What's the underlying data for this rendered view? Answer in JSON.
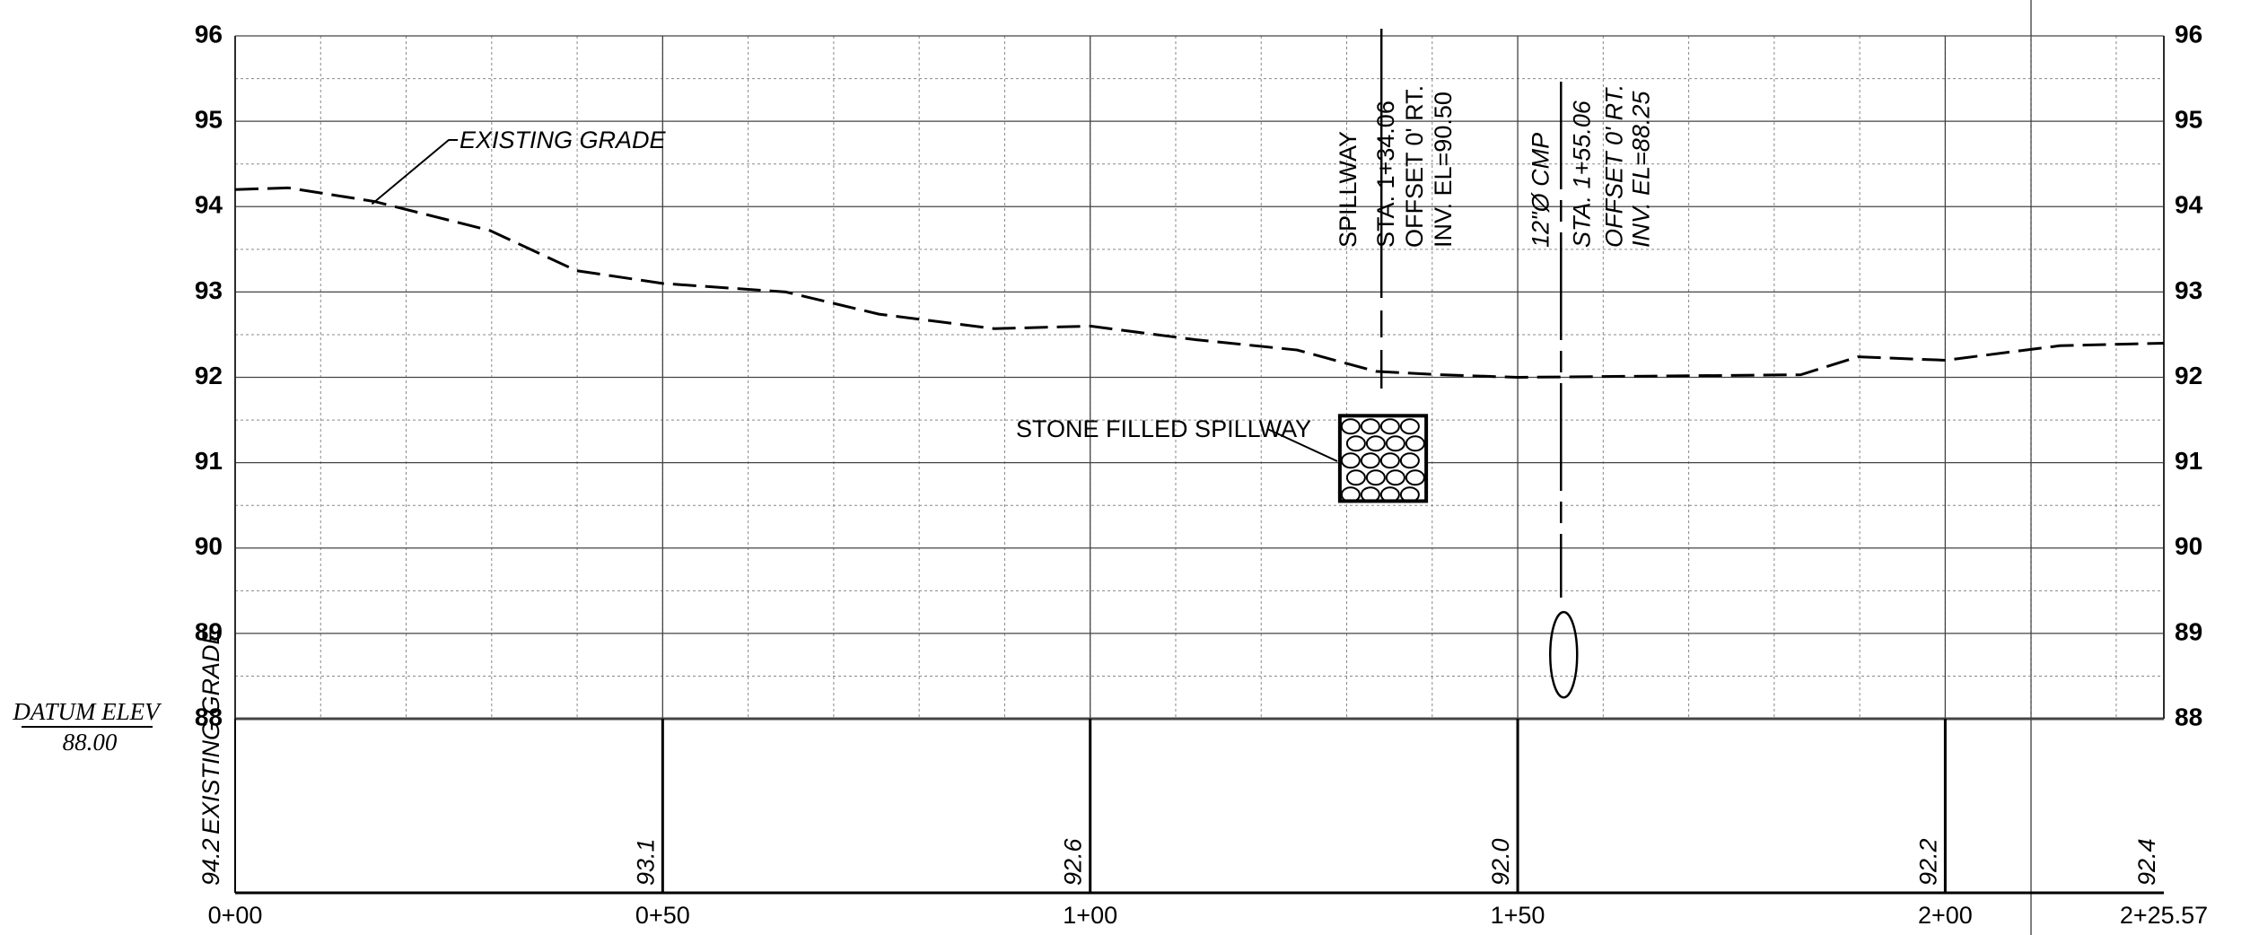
{
  "chart_data": {
    "type": "line",
    "x": [
      0,
      6.2,
      16.3,
      29.8,
      39.9,
      50,
      64.4,
      75.3,
      88.8,
      100,
      112.4,
      124.2,
      133.4,
      141,
      150,
      183.1,
      189.8,
      200,
      213.4,
      225.57
    ],
    "series": [
      {
        "name": "EXISTING GRADE",
        "color": "#000000",
        "values": [
          94.2,
          94.22,
          94.06,
          93.72,
          93.25,
          93.1,
          93.0,
          92.74,
          92.57,
          92.6,
          92.44,
          92.32,
          92.07,
          92.03,
          92.0,
          92.03,
          92.24,
          92.2,
          92.37,
          92.4
        ]
      }
    ],
    "xlim": [
      0,
      225.57
    ],
    "xticks": [
      {
        "value": 0,
        "label": "0+00"
      },
      {
        "value": 50,
        "label": "0+50"
      },
      {
        "value": 100,
        "label": "1+00"
      },
      {
        "value": 150,
        "label": "1+50"
      },
      {
        "value": 200,
        "label": "2+00"
      },
      {
        "value": 225.57,
        "label": "2+25.57"
      }
    ],
    "ylim": [
      88,
      96
    ],
    "yticks": [
      88,
      89,
      90,
      91,
      92,
      93,
      94,
      95,
      96
    ],
    "grid": true,
    "grade_table": {
      "title": "EXISTING GRADE",
      "x": [
        0,
        50,
        100,
        150,
        200,
        225.57
      ],
      "values": [
        94.2,
        93.1,
        92.6,
        92.0,
        92.2,
        92.4
      ],
      "value_labels": [
        "94.2",
        "93.1",
        "92.6",
        "92.0",
        "92.2",
        "92.4"
      ]
    },
    "annotations": {
      "grade_label": "EXISTING GRADE",
      "stone_label": "STONE FILLED SPILLWAY",
      "stone_box": {
        "x": [
          129.2,
          139.3
        ],
        "y": [
          90.55,
          91.55
        ]
      },
      "spillway": {
        "station": 134.06,
        "lines": [
          "SPILLWAY",
          "STA. 1+34.06",
          "OFFSET 0' RT.",
          "INV. EL=90.50"
        ]
      },
      "cmp": {
        "station": 155.06,
        "invert": 88.25,
        "lines": [
          "12\"Ø CMP",
          "STA. 1+55.06",
          "OFFSET 0' RT.",
          "INV. EL=88.25"
        ]
      },
      "datum_label": "DATUM ELEV",
      "datum_value": "88.00"
    }
  }
}
